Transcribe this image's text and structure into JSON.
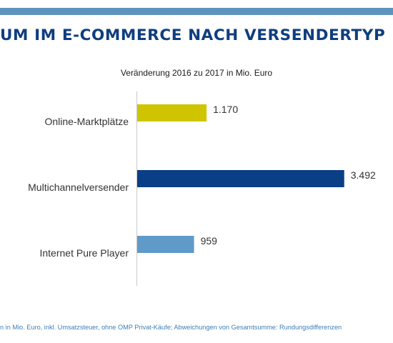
{
  "header": {
    "title": "UM IM E-COMMERCE NACH VERSENDERTYP",
    "accent_color": "#5f93bf",
    "title_color": "#0f3e7f"
  },
  "chart_data": {
    "type": "bar",
    "orientation": "horizontal",
    "subtitle": "Veränderung 2016 zu 2017 in Mio. Euro",
    "categories": [
      "Online-Marktplätze",
      "Multichannelversender",
      "Internet Pure Player"
    ],
    "values": [
      1170,
      3492,
      959
    ],
    "value_labels": [
      "1.170",
      "3.492",
      "959"
    ],
    "colors": [
      "#cfc400",
      "#0a3e86",
      "#5f9ac9"
    ],
    "xlim": [
      0,
      3700
    ],
    "grid": false,
    "legend": "none"
  },
  "footnote": "n in Mio. Euro, inkl. Umsatzsteuer, ohne OMP Privat-Käufe; Abweichungen von Gesamtsumme: Rundungsdifferenzen"
}
